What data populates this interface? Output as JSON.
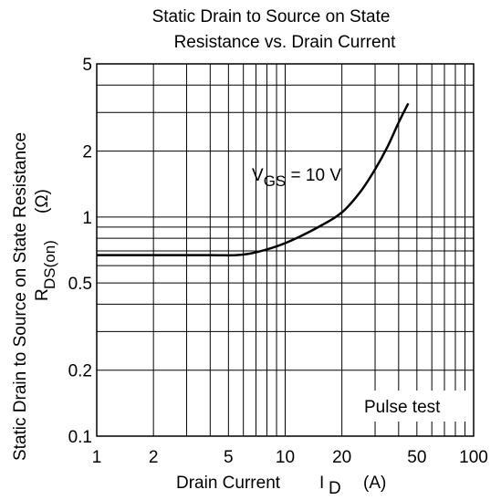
{
  "chart_data": {
    "type": "line",
    "title_line1": "Static Drain to Source on State",
    "title_line2": "Resistance vs. Drain Current",
    "xlabel_main": "Drain Current",
    "xlabel_symbol": "I",
    "xlabel_sub": "D",
    "xlabel_unit": "(A)",
    "ylabel_main": "Static Drain to Source on State Resistance",
    "ylabel_symbol": "R",
    "ylabel_sub": "DS(on)",
    "ylabel_unit": "(Ω)",
    "x_scale": "log",
    "y_scale": "log",
    "xlim": [
      1,
      100
    ],
    "ylim": [
      0.1,
      5
    ],
    "x_ticks": [
      {
        "v": 1,
        "label": "1"
      },
      {
        "v": 2,
        "label": "2"
      },
      {
        "v": 5,
        "label": "5"
      },
      {
        "v": 10,
        "label": "10"
      },
      {
        "v": 20,
        "label": "20"
      },
      {
        "v": 50,
        "label": "50"
      },
      {
        "v": 100,
        "label": "100"
      }
    ],
    "y_ticks": [
      {
        "v": 0.1,
        "label": "0.1"
      },
      {
        "v": 0.2,
        "label": "0.2"
      },
      {
        "v": 0.5,
        "label": "0.5"
      },
      {
        "v": 1,
        "label": "1"
      },
      {
        "v": 2,
        "label": "2"
      },
      {
        "v": 5,
        "label": "5"
      }
    ],
    "grid": true,
    "series": [
      {
        "label_main": "V",
        "label_sub": "GS",
        "label_rest": " = 10 V",
        "x": [
          1,
          2,
          4,
          5.5,
          7,
          10,
          15,
          20,
          25,
          30,
          35,
          40,
          45
        ],
        "y": [
          0.67,
          0.67,
          0.67,
          0.67,
          0.69,
          0.76,
          0.9,
          1.05,
          1.3,
          1.65,
          2.1,
          2.7,
          3.3
        ]
      }
    ],
    "annotation": "Pulse test"
  }
}
